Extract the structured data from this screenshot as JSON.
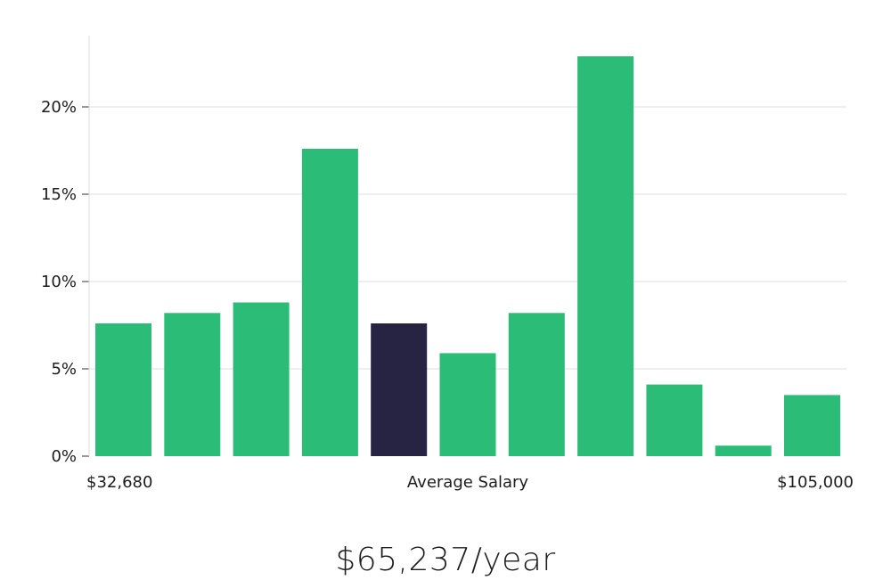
{
  "chart_data": {
    "type": "bar",
    "categories": [
      "1",
      "2",
      "3",
      "4",
      "5",
      "6",
      "7",
      "8",
      "9",
      "10",
      "11"
    ],
    "values": [
      7.6,
      8.2,
      8.8,
      17.6,
      7.6,
      5.9,
      8.2,
      22.9,
      4.1,
      0.6,
      3.5
    ],
    "highlight_index": 4,
    "ylim": [
      0,
      24
    ],
    "yticks": [
      0,
      5,
      10,
      15,
      20
    ],
    "ytick_labels": [
      "0%",
      "5%",
      "10%",
      "15%",
      "20%"
    ],
    "grid": true,
    "colors": {
      "bar": "#2bbd77",
      "highlight": "#272343",
      "grid": "#dcdcdc",
      "axis": "#dcdcdc"
    },
    "x_labels": {
      "left": "$32,680",
      "center": "Average Salary",
      "right": "$105,000"
    }
  },
  "summary": {
    "salary": "$65,237/year"
  }
}
